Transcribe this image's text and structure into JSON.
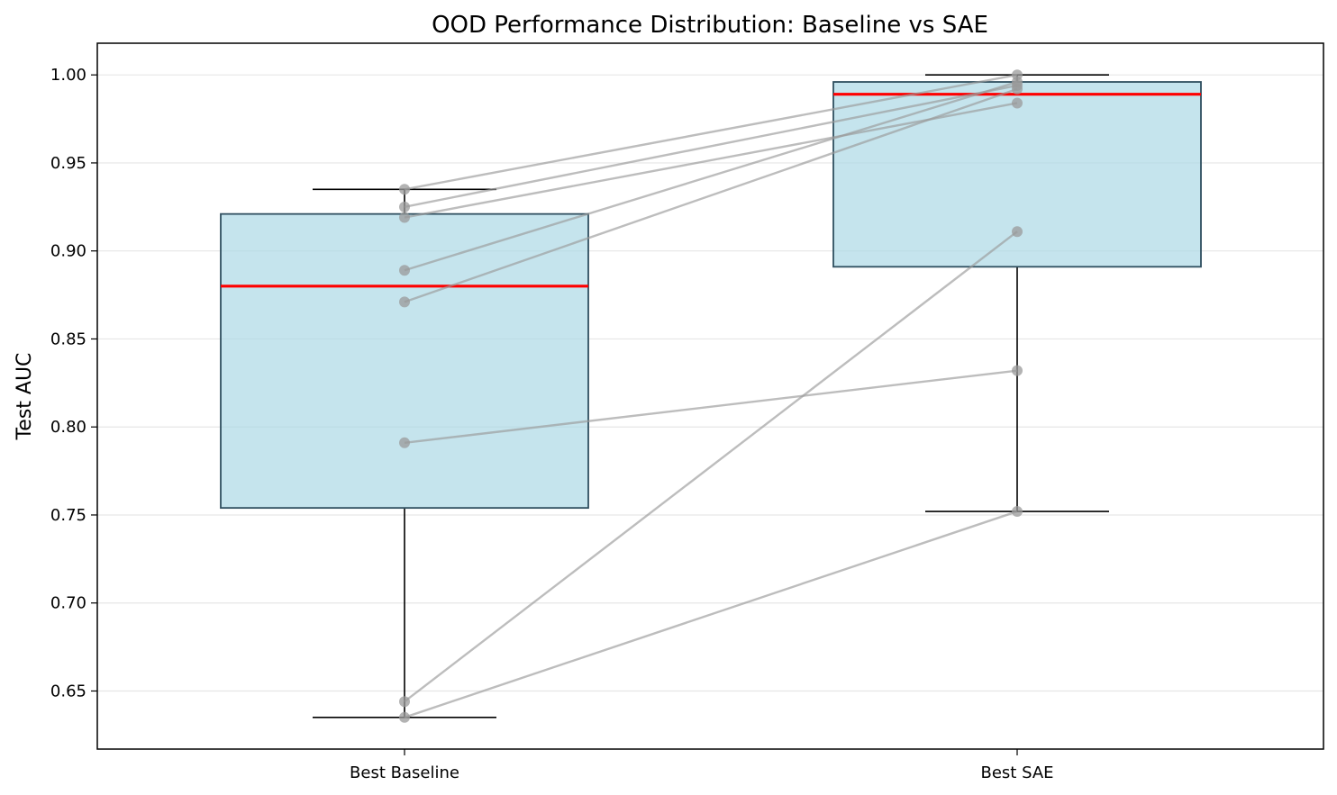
{
  "chart_data": {
    "type": "box",
    "title": "OOD Performance Distribution: Baseline vs SAE",
    "xlabel": "",
    "ylabel": "Test AUC",
    "categories": [
      "Best Baseline",
      "Best SAE"
    ],
    "ylim": [
      0.617,
      1.018
    ],
    "yticks": [
      0.65,
      0.7,
      0.75,
      0.8,
      0.85,
      0.9,
      0.95,
      1.0
    ],
    "ytick_labels": [
      "0.65",
      "0.70",
      "0.75",
      "0.80",
      "0.85",
      "0.90",
      "0.95",
      "1.00"
    ],
    "grid": "y",
    "boxes": [
      {
        "category": "Best Baseline",
        "whisker_low": 0.635,
        "q1": 0.754,
        "median": 0.88,
        "q3": 0.921,
        "whisker_high": 0.935
      },
      {
        "category": "Best SAE",
        "whisker_low": 0.752,
        "q1": 0.891,
        "median": 0.989,
        "q3": 0.996,
        "whisker_high": 1.0
      }
    ],
    "paired_points": [
      {
        "baseline": 0.935,
        "sae": 1.0
      },
      {
        "baseline": 0.925,
        "sae": 0.994
      },
      {
        "baseline": 0.919,
        "sae": 0.984
      },
      {
        "baseline": 0.889,
        "sae": 0.996
      },
      {
        "baseline": 0.871,
        "sae": 0.992
      },
      {
        "baseline": 0.791,
        "sae": 0.832
      },
      {
        "baseline": 0.644,
        "sae": 0.911
      },
      {
        "baseline": 0.635,
        "sae": 0.752
      }
    ],
    "colors": {
      "box_fill": "#add8e6",
      "box_edge": "#2f4f5f",
      "median": "#ff0000",
      "paired": "#999999",
      "whisker": "#000000",
      "grid": "#e6e6e6"
    }
  }
}
